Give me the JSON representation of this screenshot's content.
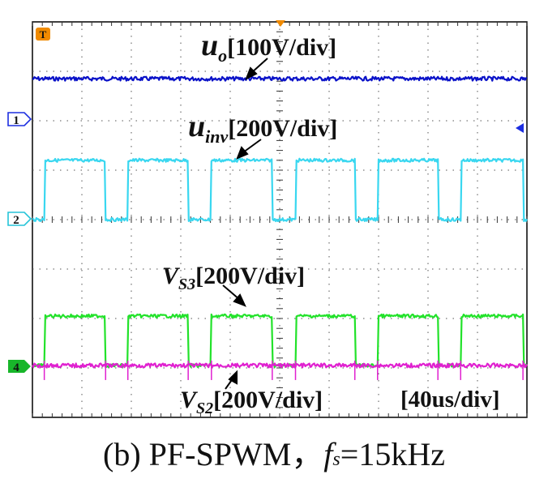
{
  "caption": {
    "prefix": "(b) PF-SPWM",
    "separator": "，",
    "fs_symbol": "f",
    "fs_sub": "s",
    "fs_value": "=15kHz"
  },
  "labels": {
    "uo": {
      "main": "u",
      "sub": "o",
      "scale": "[100V/div]"
    },
    "uinv": {
      "main": "u",
      "sub": "inv",
      "scale": "[200V/div]"
    },
    "vs3": {
      "main": "V",
      "sub": "S3",
      "scale": "[200V/div]"
    },
    "vs2": {
      "main": "V",
      "sub": "S2",
      "scale": "[200V/div]"
    },
    "timebase": "[40us/div]"
  },
  "markers": {
    "trigger": "T",
    "ch1": "1",
    "ch2": "2",
    "ch4": "4"
  },
  "chart_data": {
    "type": "line",
    "title": "",
    "xlabel": "",
    "ylabel": "",
    "time_per_div_us": 40,
    "xlim_div": [
      0,
      10
    ],
    "ylim_div": [
      -4,
      4
    ],
    "grid": true,
    "series": [
      {
        "name": "u_o",
        "color": "#0a12c8",
        "scale": "100V/div",
        "kind": "dc",
        "level_div": 2.85
      },
      {
        "name": "u_inv",
        "color": "#39d7f0",
        "scale": "200V/div",
        "kind": "pulse",
        "low_div": 0.0,
        "high_div": 1.2,
        "pulses_div": [
          [
            0.24,
            1.48
          ],
          [
            1.93,
            3.15
          ],
          [
            3.62,
            4.85
          ],
          [
            5.32,
            6.52
          ],
          [
            6.98,
            8.2
          ],
          [
            8.66,
            9.92
          ]
        ]
      },
      {
        "name": "V_S3",
        "color": "#22e22a",
        "scale": "200V/div",
        "kind": "pulse",
        "low_div": -2.95,
        "high_div": -1.95,
        "pulses_div": [
          [
            0.24,
            1.48
          ],
          [
            1.93,
            3.15
          ],
          [
            3.62,
            4.85
          ],
          [
            5.32,
            6.52
          ],
          [
            6.98,
            8.2
          ],
          [
            8.66,
            9.92
          ]
        ]
      },
      {
        "name": "V_S2",
        "color": "#e020d0",
        "scale": "200V/div",
        "kind": "dc",
        "level_div": -2.95
      }
    ],
    "colors": {
      "uo": "#0a12c8",
      "uinv": "#39d7f0",
      "vs3": "#22e22a",
      "vs2": "#e020d0",
      "ch1_marker": "#1c2ee0",
      "ch2_marker": "#25c4d8",
      "ch4_marker": "#18b62a",
      "trigger": "#f08a00"
    }
  }
}
